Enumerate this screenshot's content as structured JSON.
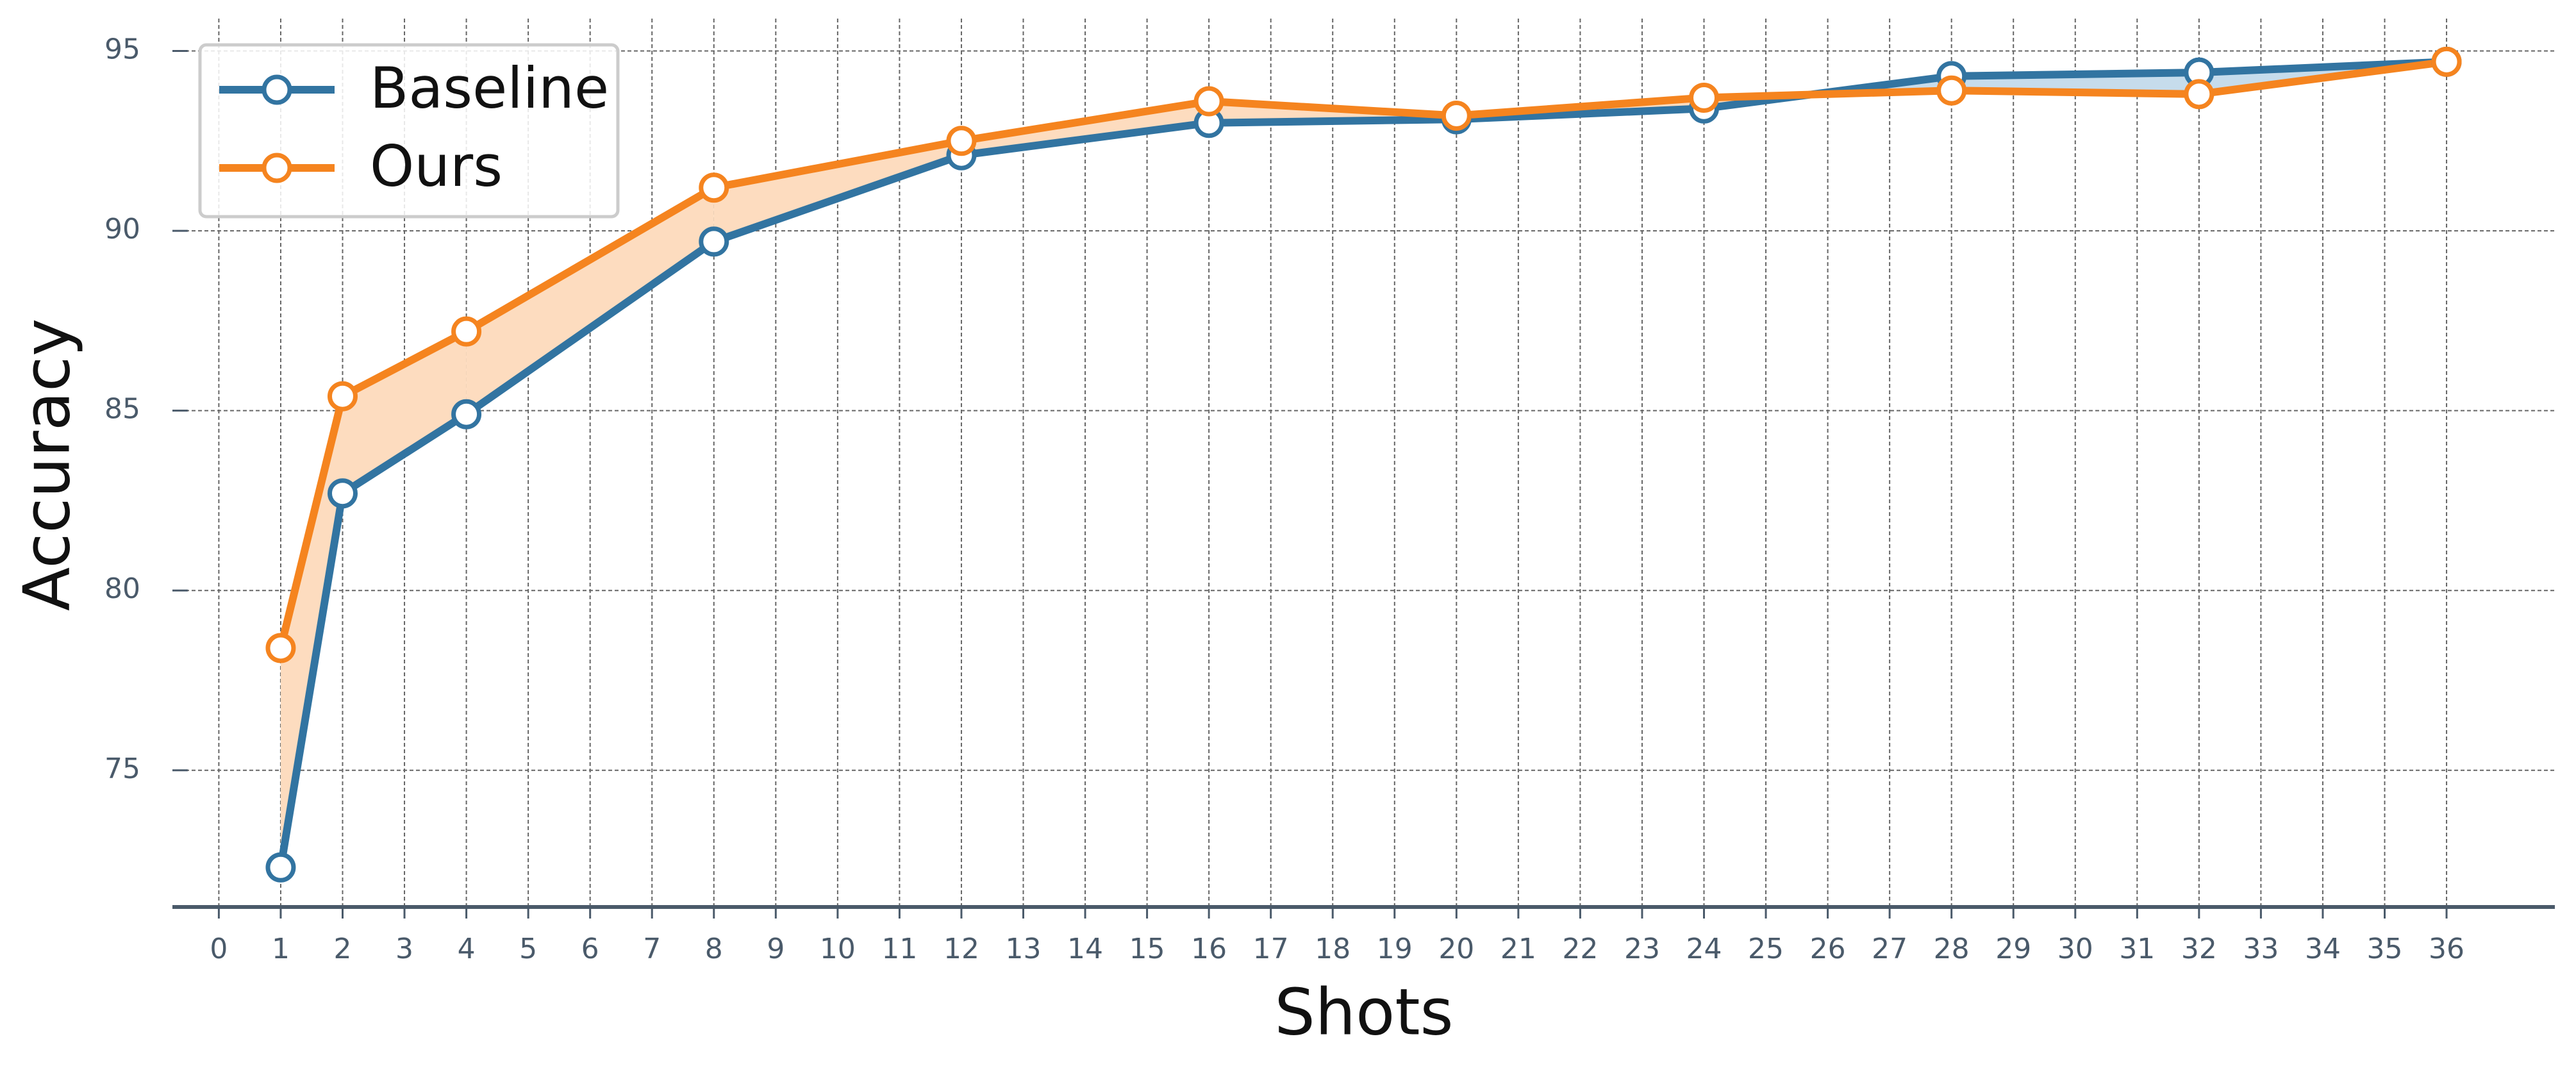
{
  "chart_data": {
    "type": "line",
    "x_label": "Shots",
    "y_label": "Accuracy",
    "x": [
      1,
      2,
      4,
      8,
      12,
      16,
      20,
      24,
      28,
      32,
      36
    ],
    "series": [
      {
        "name": "Baseline",
        "color": "#3274a1",
        "fill_color": "#c6dcec",
        "values": [
          72.3,
          82.7,
          84.9,
          89.7,
          92.1,
          93.0,
          93.1,
          93.4,
          94.3,
          94.4,
          94.7
        ]
      },
      {
        "name": "Ours",
        "color": "#f5841f",
        "fill_color": "#fddcbf",
        "values": [
          78.4,
          85.4,
          87.2,
          91.2,
          92.5,
          93.6,
          93.2,
          93.7,
          93.9,
          93.8,
          94.7
        ]
      }
    ],
    "xlim": [
      -0.75,
      37.75
    ],
    "xticks": [
      0,
      1,
      2,
      3,
      4,
      5,
      6,
      7,
      8,
      9,
      10,
      11,
      12,
      13,
      14,
      15,
      16,
      17,
      18,
      19,
      20,
      21,
      22,
      23,
      24,
      25,
      26,
      27,
      28,
      29,
      30,
      31,
      32,
      33,
      34,
      35,
      36
    ],
    "ylim": [
      71.2,
      95.9
    ],
    "yticks": [
      75,
      80,
      85,
      90,
      95
    ],
    "grid": true,
    "legend": "upper left"
  }
}
